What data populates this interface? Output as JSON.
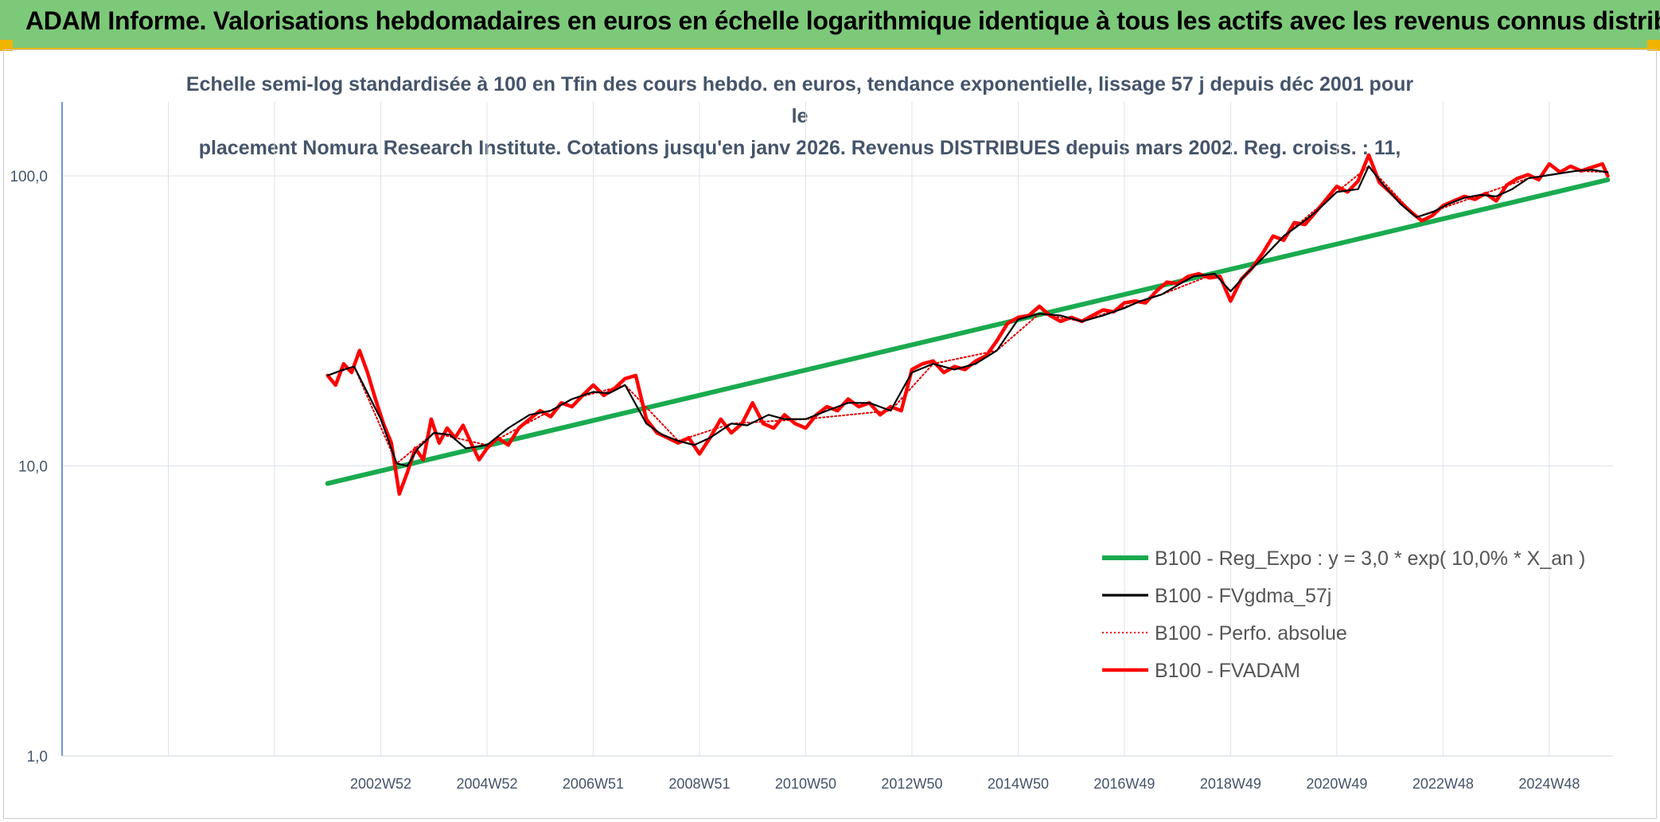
{
  "header": {
    "title": "ADAM Informe. Valorisations hebdomadaires en euros en échelle logarithmique identique à tous les actifs avec les revenus connus distribués"
  },
  "chart_data": {
    "type": "line",
    "title_line1": "Echelle semi-log standardisée à 100 en Tfin des cours hebdo. en euros, tendance exponentielle, lissage 57 j depuis déc 2001 pour le",
    "title_line2": "placement Nomura Research Institute. Cotations jusqu'en janv 2026. Revenus DISTRIBUES depuis mars 2002. Reg. croiss. : 11,",
    "y_scale": "log",
    "ylim": [
      1,
      180
    ],
    "y_ticks": [
      {
        "value": 100,
        "label": "100,0"
      },
      {
        "value": 10,
        "label": "10,0"
      },
      {
        "value": 1,
        "label": "1,0"
      }
    ],
    "xlim": [
      1997,
      2026.2
    ],
    "x_ticks": [
      {
        "value": 2003.0,
        "label": "2002W52"
      },
      {
        "value": 2005.0,
        "label": "2004W52"
      },
      {
        "value": 2007.0,
        "label": "2006W51"
      },
      {
        "value": 2009.0,
        "label": "2008W51"
      },
      {
        "value": 2011.0,
        "label": "2010W50"
      },
      {
        "value": 2013.0,
        "label": "2012W50"
      },
      {
        "value": 2015.0,
        "label": "2014W50"
      },
      {
        "value": 2017.0,
        "label": "2016W49"
      },
      {
        "value": 2019.0,
        "label": "2018W49"
      },
      {
        "value": 2021.0,
        "label": "2020W49"
      },
      {
        "value": 2023.0,
        "label": "2022W48"
      },
      {
        "value": 2025.0,
        "label": "2024W48"
      }
    ],
    "grid": true,
    "legend_position": "bottom-right",
    "series": [
      {
        "name": "B100 - Reg_Expo : y = 3,0 * exp( 10,0% *  X_an )",
        "color": "#1aaa4f",
        "style": "solid-thick",
        "x": [
          2002.0,
          2026.1
        ],
        "y": [
          8.7,
          97
        ]
      },
      {
        "name": "B100 - FVgdma_57j",
        "color": "#000000",
        "style": "solid",
        "x": [
          2002.0,
          2002.3,
          2002.5,
          2003.0,
          2003.3,
          2003.5,
          2003.7,
          2004.0,
          2004.3,
          2004.6,
          2005.0,
          2005.4,
          2005.8,
          2006.2,
          2006.6,
          2007.0,
          2007.3,
          2007.6,
          2008.0,
          2008.3,
          2008.6,
          2008.9,
          2009.2,
          2009.6,
          2009.9,
          2010.3,
          2010.6,
          2011.0,
          2011.4,
          2011.8,
          2012.2,
          2012.6,
          2013.0,
          2013.4,
          2013.8,
          2014.2,
          2014.6,
          2015.0,
          2015.4,
          2015.8,
          2016.2,
          2016.6,
          2017.0,
          2017.3,
          2017.7,
          2018.0,
          2018.3,
          2018.7,
          2019.0,
          2019.3,
          2019.6,
          2020.0,
          2020.3,
          2020.6,
          2021.0,
          2021.4,
          2021.6,
          2021.9,
          2022.2,
          2022.5,
          2022.8,
          2023.1,
          2023.4,
          2023.7,
          2024.0,
          2024.3,
          2024.6,
          2024.9,
          2025.2,
          2025.5,
          2025.8,
          2026.1
        ],
        "y": [
          20.5,
          21.5,
          22.0,
          14.5,
          10.2,
          10.0,
          11.5,
          13.0,
          12.8,
          11.5,
          11.8,
          13.5,
          15.0,
          15.5,
          17.0,
          18.0,
          17.8,
          19.0,
          14.0,
          12.8,
          12.2,
          11.8,
          12.5,
          14.0,
          13.8,
          15.0,
          14.5,
          14.5,
          15.5,
          16.5,
          16.5,
          15.5,
          21.0,
          22.5,
          21.5,
          22.5,
          25.0,
          32.0,
          33.5,
          33.0,
          31.5,
          33.0,
          35.0,
          37.0,
          39.0,
          42.0,
          45.0,
          46.0,
          40.0,
          46.0,
          52.0,
          62.0,
          68.0,
          75.0,
          88.0,
          90.0,
          108.0,
          92.0,
          80.0,
          72.0,
          75.0,
          80.0,
          84.0,
          86.0,
          85.0,
          90.0,
          98.0,
          100.0,
          102.0,
          104.0,
          105.0,
          103.0
        ]
      },
      {
        "name": "B100 - Perfo. absolue",
        "color": "#e00000",
        "style": "dotted",
        "x": [
          2002.0,
          2002.5,
          2003.3,
          2004.0,
          2005.0,
          2006.6,
          2007.6,
          2008.6,
          2009.6,
          2011.0,
          2012.6,
          2013.4,
          2014.6,
          2015.4,
          2016.2,
          2017.7,
          2018.7,
          2019.0,
          2020.0,
          2021.0,
          2021.6,
          2022.5,
          2023.7,
          2024.6,
          2025.5,
          2026.1
        ],
        "y": [
          20.5,
          22.0,
          10.2,
          13.0,
          11.8,
          17.0,
          19.0,
          12.2,
          14.0,
          14.5,
          15.5,
          22.5,
          25.0,
          33.5,
          31.5,
          39.0,
          46.0,
          40.0,
          62.0,
          88.0,
          108.0,
          72.0,
          86.0,
          98.0,
          104.0,
          103.0
        ]
      },
      {
        "name": "B100 - FVADAM",
        "color": "#ff0000",
        "style": "solid-thick",
        "x": [
          2002.0,
          2002.15,
          2002.3,
          2002.45,
          2002.6,
          2002.75,
          2002.9,
          2003.05,
          2003.2,
          2003.35,
          2003.5,
          2003.65,
          2003.8,
          2003.95,
          2004.1,
          2004.25,
          2004.4,
          2004.55,
          2004.7,
          2004.85,
          2005.0,
          2005.2,
          2005.4,
          2005.6,
          2005.8,
          2006.0,
          2006.2,
          2006.4,
          2006.6,
          2006.8,
          2007.0,
          2007.2,
          2007.4,
          2007.6,
          2007.8,
          2008.0,
          2008.2,
          2008.4,
          2008.6,
          2008.8,
          2009.0,
          2009.2,
          2009.4,
          2009.6,
          2009.8,
          2010.0,
          2010.2,
          2010.4,
          2010.6,
          2010.8,
          2011.0,
          2011.2,
          2011.4,
          2011.6,
          2011.8,
          2012.0,
          2012.2,
          2012.4,
          2012.6,
          2012.8,
          2013.0,
          2013.2,
          2013.4,
          2013.6,
          2013.8,
          2014.0,
          2014.2,
          2014.4,
          2014.6,
          2014.8,
          2015.0,
          2015.2,
          2015.4,
          2015.6,
          2015.8,
          2016.0,
          2016.2,
          2016.4,
          2016.6,
          2016.8,
          2017.0,
          2017.2,
          2017.4,
          2017.6,
          2017.8,
          2018.0,
          2018.2,
          2018.4,
          2018.6,
          2018.8,
          2019.0,
          2019.2,
          2019.4,
          2019.6,
          2019.8,
          2020.0,
          2020.2,
          2020.4,
          2020.6,
          2020.8,
          2021.0,
          2021.2,
          2021.4,
          2021.6,
          2021.8,
          2022.0,
          2022.2,
          2022.4,
          2022.6,
          2022.8,
          2023.0,
          2023.2,
          2023.4,
          2023.6,
          2023.8,
          2024.0,
          2024.2,
          2024.4,
          2024.6,
          2024.8,
          2025.0,
          2025.2,
          2025.4,
          2025.6,
          2025.8,
          2026.0,
          2026.1
        ],
        "y": [
          20.5,
          19.0,
          22.5,
          21.0,
          25.0,
          21.0,
          17.0,
          14.0,
          12.0,
          8.0,
          9.5,
          11.5,
          10.5,
          14.5,
          12.0,
          13.5,
          12.5,
          13.8,
          12.0,
          10.5,
          11.5,
          12.5,
          11.8,
          13.5,
          14.5,
          15.5,
          14.8,
          16.5,
          16.0,
          17.5,
          19.0,
          17.5,
          18.5,
          20.0,
          20.5,
          14.5,
          13.0,
          12.5,
          12.0,
          12.5,
          11.0,
          12.5,
          14.5,
          13.0,
          14.0,
          16.5,
          14.0,
          13.5,
          15.0,
          14.0,
          13.5,
          15.0,
          16.0,
          15.5,
          17.0,
          16.0,
          16.5,
          15.0,
          16.0,
          15.5,
          21.5,
          22.5,
          23.0,
          21.0,
          22.0,
          21.5,
          23.0,
          24.0,
          27.0,
          31.0,
          32.5,
          33.0,
          35.5,
          33.0,
          31.5,
          32.5,
          31.5,
          33.0,
          34.5,
          34.0,
          36.5,
          37.0,
          36.5,
          40.0,
          43.0,
          42.5,
          45.0,
          46.0,
          44.5,
          45.0,
          37.0,
          44.0,
          48.0,
          54.0,
          62.0,
          60.0,
          69.0,
          68.0,
          75.0,
          83.0,
          92.0,
          88.0,
          96.0,
          118.0,
          95.0,
          88.0,
          81.0,
          75.0,
          70.0,
          73.0,
          79.0,
          82.0,
          85.0,
          83.0,
          87.0,
          82.0,
          93.0,
          98.0,
          101.0,
          97.0,
          110.0,
          103.0,
          108.0,
          104.0,
          107.0,
          110.0,
          100.0
        ]
      }
    ]
  }
}
